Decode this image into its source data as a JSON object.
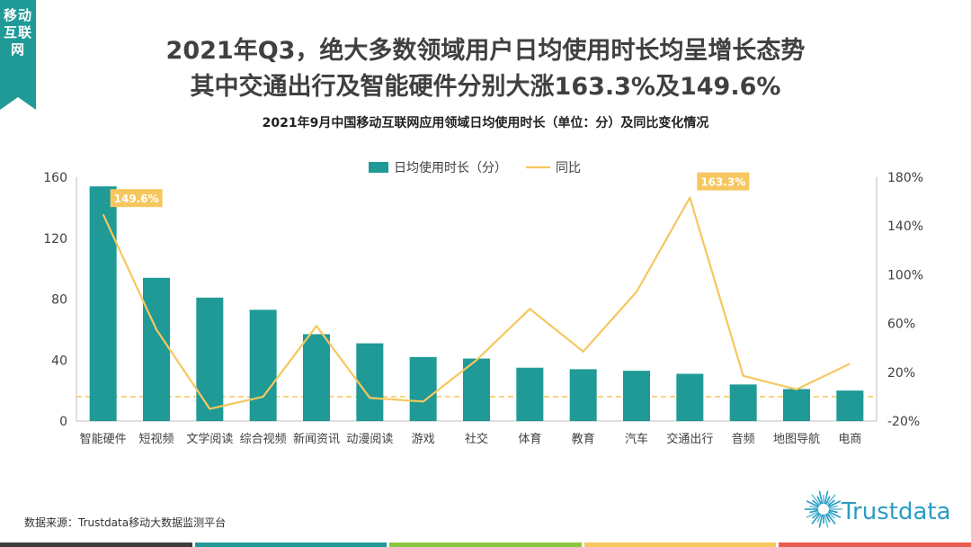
{
  "side_tab": {
    "label": "移动互联网"
  },
  "header": {
    "title_line1": "2021年Q3，绝大多数领域用户日均使用时长均呈增长态势",
    "title_line2": "其中交通出行及智能硬件分别大涨163.3%及149.6%",
    "subtitle": "2021年9月中国移动互联网应用领域日均使用时长（单位：分）及同比变化情况"
  },
  "chart_data": {
    "type": "bar",
    "categories": [
      "智能硬件",
      "短视频",
      "文学阅读",
      "综合视频",
      "新闻资讯",
      "动漫阅读",
      "游戏",
      "社交",
      "体育",
      "教育",
      "汽车",
      "交通出行",
      "音频",
      "地图导航",
      "电商"
    ],
    "series": [
      {
        "name": "日均使用时长（分）",
        "type": "bar",
        "axis": "left",
        "color": "#1f9a96",
        "values": [
          154,
          94,
          81,
          73,
          57,
          51,
          42,
          41,
          35,
          34,
          33,
          31,
          24,
          21,
          20
        ]
      },
      {
        "name": "同比",
        "type": "line",
        "axis": "right",
        "color": "#f6c75e",
        "values": [
          149.6,
          55,
          -10,
          0,
          58,
          -1,
          -4,
          30,
          72,
          37,
          86,
          163.3,
          17,
          6,
          27
        ]
      }
    ],
    "left_axis": {
      "ylim": [
        0,
        160
      ],
      "ticks": [
        "0",
        "40",
        "80",
        "120",
        "160"
      ]
    },
    "right_axis": {
      "ylim": [
        -20,
        180
      ],
      "ticks": [
        "-20%",
        "20%",
        "60%",
        "100%",
        "140%",
        "180%"
      ]
    },
    "reference_line": {
      "axis": "right",
      "value": 0,
      "style": "dashed",
      "color": "#f6c75e"
    },
    "annotations": [
      {
        "category_index": 0,
        "text": "149.6%"
      },
      {
        "category_index": 11,
        "text": "163.3%"
      }
    ],
    "legend_position": "top-center",
    "grid": false
  },
  "footer": {
    "source": "数据来源：Trustdata移动大数据监测平台",
    "logo_text": "Trustdata",
    "bar_colors": [
      "#3c3c3c",
      "#1f9a96",
      "#8cc63f",
      "#f6c75e",
      "#e95a4f"
    ]
  }
}
